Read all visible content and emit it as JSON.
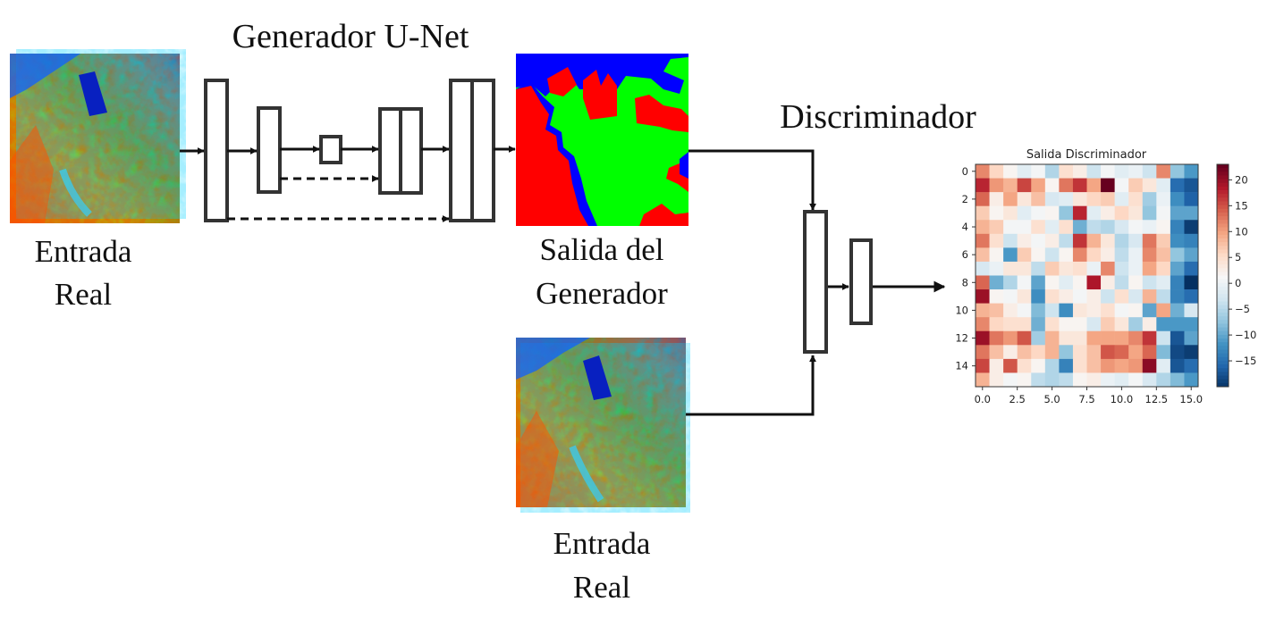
{
  "generator": {
    "title": "Generador U-Net"
  },
  "discriminator": {
    "title": "Discriminador"
  },
  "labels": {
    "input_top": [
      "Entrada",
      "Real"
    ],
    "generator_output": [
      "Salida del",
      "Generador"
    ],
    "input_bottom": [
      "Entrada",
      "Real"
    ]
  },
  "colors": {
    "segmentation_classes": [
      "#ff0000",
      "#00ff00",
      "#0000ff"
    ],
    "block_stroke": "#333333",
    "arrow": "#111111"
  },
  "chart_data": {
    "type": "heatmap",
    "title": "Salida Discriminador",
    "x_ticks": [
      "0.0",
      "2.5",
      "5.0",
      "7.5",
      "10.0",
      "12.5",
      "15.0"
    ],
    "y_ticks": [
      "0",
      "2",
      "4",
      "6",
      "8",
      "10",
      "12",
      "14"
    ],
    "colorbar_ticks": [
      "20",
      "15",
      "10",
      "5",
      "0",
      "−5",
      "−10",
      "−15"
    ],
    "colormap": "RdBu_r",
    "vmin": -20,
    "vmax": 23,
    "grid": false,
    "values": [
      [
        12,
        6,
        2,
        -1,
        1,
        -5,
        5,
        3,
        -3,
        1,
        -1,
        0,
        -3,
        12,
        -7,
        -11
      ],
      [
        18,
        11,
        9,
        16,
        10,
        2,
        13,
        17,
        10,
        23,
        1,
        7,
        4,
        -1,
        -15,
        -17
      ],
      [
        14,
        3,
        10,
        4,
        8,
        -2,
        -1,
        4,
        6,
        7,
        -1,
        5,
        -6,
        0,
        -12,
        -16
      ],
      [
        7,
        2,
        4,
        -1,
        1,
        2,
        -7,
        18,
        -1,
        3,
        6,
        4,
        -7,
        1,
        -10,
        -10
      ],
      [
        9,
        7,
        1,
        1,
        5,
        -1,
        5,
        -9,
        -4,
        -5,
        -2,
        1,
        0,
        2,
        -13,
        -19
      ],
      [
        13,
        5,
        -3,
        3,
        1,
        3,
        -4,
        17,
        9,
        4,
        -5,
        -2,
        13,
        7,
        -12,
        -13
      ],
      [
        8,
        2,
        -11,
        7,
        2,
        -3,
        2,
        12,
        6,
        3,
        -4,
        0,
        12,
        8,
        -7,
        -10
      ],
      [
        -2,
        0,
        4,
        4,
        -4,
        7,
        4,
        5,
        0,
        12,
        -3,
        0,
        10,
        6,
        -10,
        -15
      ],
      [
        14,
        -9,
        -5,
        1,
        -10,
        2,
        -1,
        2,
        19,
        3,
        -4,
        2,
        -3,
        -1,
        -13,
        -20
      ],
      [
        20,
        2,
        1,
        4,
        -12,
        5,
        3,
        1,
        3,
        -3,
        5,
        -2,
        9,
        -4,
        -13,
        -15
      ],
      [
        9,
        8,
        3,
        1,
        -8,
        -3,
        -12,
        4,
        3,
        5,
        1,
        2,
        -10,
        10,
        -9,
        -2
      ],
      [
        12,
        6,
        5,
        5,
        -9,
        5,
        2,
        2,
        -2,
        7,
        4,
        -6,
        3,
        -11,
        -11,
        -11
      ],
      [
        20,
        13,
        11,
        15,
        -6,
        9,
        4,
        4,
        10,
        10,
        10,
        12,
        17,
        -3,
        -17,
        -10
      ],
      [
        13,
        8,
        3,
        8,
        6,
        9,
        -7,
        5,
        8,
        15,
        14,
        10,
        14,
        -8,
        -18,
        -19
      ],
      [
        16,
        3,
        15,
        5,
        2,
        -5,
        -13,
        5,
        8,
        11,
        10,
        11,
        21,
        -1,
        -17,
        -15
      ],
      [
        9,
        3,
        1,
        2,
        -4,
        -5,
        -4,
        2,
        3,
        0,
        -1,
        1,
        -2,
        -5,
        -8,
        -11
      ]
    ]
  }
}
